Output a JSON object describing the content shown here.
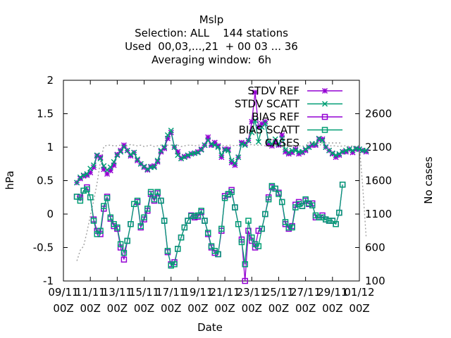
{
  "chart_data": {
    "type": "line",
    "title_lines": [
      "Mslp",
      "Selection: ALL    144 stations",
      "Used  00,03,...,21  + 00 03 ... 36",
      "Averaging window:  6h"
    ],
    "xlabel": "Date",
    "ylabel": "hPa",
    "y2label": "No cases",
    "ylim": [
      -1,
      2
    ],
    "y2lim": [
      100,
      3100
    ],
    "xlim": [
      0,
      22
    ],
    "y_ticks": [
      "2",
      "1.5",
      "1",
      "0.5",
      "0",
      "-0.5",
      "-1"
    ],
    "y2_ticks": [
      "2600",
      "2100",
      "1600",
      "1100",
      "600",
      "100"
    ],
    "x_ticks": [
      {
        "date": "09/11",
        "hour": "00Z"
      },
      {
        "date": "11/11",
        "hour": "00Z"
      },
      {
        "date": "13/11",
        "hour": "00Z"
      },
      {
        "date": "15/11",
        "hour": "00Z"
      },
      {
        "date": "17/11",
        "hour": "00Z"
      },
      {
        "date": "19/11",
        "hour": "00Z"
      },
      {
        "date": "21/11",
        "hour": "00Z"
      },
      {
        "date": "23/11",
        "hour": "00Z"
      },
      {
        "date": "25/11",
        "hour": "00Z"
      },
      {
        "date": "27/11",
        "hour": "00Z"
      },
      {
        "date": "29/11",
        "hour": "00Z"
      },
      {
        "date": "01/12",
        "hour": "00Z"
      }
    ],
    "legend": "top-right",
    "grid": false,
    "colors": {
      "ref": "#9400d3",
      "scatt": "#009e73",
      "cases": "#a0a0a0"
    },
    "x_step_days": 0.25,
    "x_start_day": 1,
    "series": [
      {
        "name": "STDV REF",
        "marker": "star",
        "color": "#9400d3",
        "values": [
          0.47,
          0.53,
          0.57,
          0.58,
          0.62,
          0.7,
          0.87,
          0.85,
          0.67,
          0.6,
          0.65,
          0.73,
          0.89,
          0.95,
          1.03,
          0.95,
          0.87,
          0.92,
          0.8,
          0.75,
          0.7,
          0.66,
          0.71,
          0.72,
          0.78,
          0.93,
          0.98,
          1.13,
          1.22,
          1.0,
          0.93,
          0.83,
          0.86,
          0.87,
          0.9,
          0.91,
          0.93,
          0.97,
          1.03,
          1.15,
          1.03,
          1.07,
          1.02,
          0.85,
          0.97,
          0.97,
          0.77,
          0.73,
          0.85,
          1.07,
          1.05,
          1.1,
          1.38,
          1.82,
          1.3,
          1.35,
          1.38,
          1.05,
          1.02,
          1.08,
          1.03,
          1.18,
          0.93,
          0.9,
          0.92,
          0.97,
          0.9,
          0.92,
          0.95,
          1.0,
          1.03,
          1.03,
          1.12,
          1.12,
          1.0,
          0.95,
          0.9,
          0.85,
          0.88,
          0.93,
          0.93,
          0.97,
          0.92,
          0.97,
          0.97,
          0.95,
          0.93
        ]
      },
      {
        "name": "STDV SCATT",
        "marker": "x",
        "color": "#009e73",
        "values": [
          0.47,
          0.55,
          0.58,
          0.6,
          0.68,
          0.73,
          0.88,
          0.83,
          0.72,
          0.66,
          0.7,
          0.78,
          0.88,
          0.93,
          1.0,
          0.95,
          0.89,
          0.92,
          0.82,
          0.75,
          0.71,
          0.67,
          0.7,
          0.7,
          0.8,
          0.95,
          1.0,
          1.18,
          1.25,
          1.0,
          0.88,
          0.83,
          0.85,
          0.88,
          0.9,
          0.91,
          0.92,
          0.96,
          1.03,
          1.1,
          1.05,
          1.03,
          1.0,
          0.88,
          0.96,
          0.95,
          0.8,
          0.76,
          0.85,
          1.05,
          1.03,
          1.1,
          1.22,
          1.4,
          1.08,
          1.3,
          1.35,
          1.08,
          1.05,
          1.12,
          1.05,
          1.13,
          0.96,
          0.92,
          0.95,
          0.95,
          0.93,
          0.93,
          0.97,
          1.0,
          1.05,
          1.05,
          1.13,
          1.1,
          1.0,
          0.95,
          0.91,
          0.88,
          0.9,
          0.93,
          0.95,
          0.97,
          0.95,
          0.98,
          0.97,
          0.95,
          0.95
        ]
      },
      {
        "name": "BIAS REF",
        "marker": "square",
        "color": "#9400d3",
        "values": [
          0.26,
          0.25,
          0.35,
          0.4,
          0.25,
          -0.08,
          -0.25,
          -0.3,
          0.08,
          0.26,
          -0.07,
          -0.18,
          -0.22,
          -0.5,
          -0.68,
          -0.4,
          -0.15,
          0.15,
          0.18,
          -0.2,
          -0.08,
          0.05,
          0.3,
          0.2,
          0.31,
          0.2,
          -0.1,
          -0.57,
          -0.75,
          -0.72,
          -0.52,
          -0.35,
          -0.2,
          -0.1,
          -0.02,
          -0.05,
          -0.04,
          0.03,
          -0.1,
          -0.3,
          -0.5,
          -0.58,
          -0.6,
          -0.25,
          0.27,
          0.29,
          0.36,
          0.1,
          -0.15,
          -0.38,
          -1.0,
          -0.25,
          -0.4,
          -0.5,
          -0.25,
          -0.22,
          0.0,
          0.25,
          0.4,
          0.38,
          0.32,
          0.18,
          -0.15,
          -0.22,
          -0.18,
          0.14,
          0.18,
          0.12,
          0.2,
          0.15,
          0.16,
          -0.05,
          -0.05,
          -0.02,
          -0.08,
          -0.1,
          -0.1,
          -0.15,
          0.02,
          0.44
        ]
      },
      {
        "name": "BIAS SCATT",
        "marker": "square",
        "color": "#009e73",
        "values": [
          0.26,
          0.2,
          0.35,
          0.37,
          0.25,
          -0.1,
          -0.3,
          -0.25,
          0.12,
          0.24,
          -0.05,
          -0.15,
          -0.2,
          -0.45,
          -0.58,
          -0.4,
          -0.15,
          0.15,
          0.2,
          -0.18,
          -0.05,
          0.08,
          0.33,
          0.22,
          0.33,
          0.2,
          -0.1,
          -0.55,
          -0.77,
          -0.75,
          -0.52,
          -0.35,
          -0.2,
          -0.1,
          -0.03,
          -0.03,
          -0.02,
          0.05,
          -0.1,
          -0.28,
          -0.48,
          -0.55,
          -0.6,
          -0.22,
          0.24,
          0.3,
          0.33,
          0.1,
          -0.15,
          -0.42,
          -0.75,
          -0.1,
          -0.35,
          -0.45,
          -0.48,
          -0.22,
          0.0,
          0.22,
          0.42,
          0.38,
          0.3,
          0.18,
          -0.12,
          -0.2,
          -0.2,
          0.1,
          0.15,
          0.12,
          0.22,
          0.16,
          0.13,
          -0.02,
          -0.05,
          -0.05,
          -0.08,
          -0.1,
          -0.1,
          -0.15,
          0.02,
          0.44
        ]
      },
      {
        "name": "CASES",
        "marker": "none",
        "color": "#a0a0a0",
        "dashed": true,
        "values": [
          400,
          560,
          620,
          830,
          1080,
          1300,
          1560,
          1880,
          2110,
          2130,
          2130,
          2120,
          2120,
          2130,
          2120,
          2120,
          2140,
          2130,
          2120,
          2130,
          2110,
          2120,
          2130,
          2110,
          2120,
          2130,
          2120,
          2130,
          2130,
          2130,
          2130,
          2110,
          2120,
          2130,
          2130,
          2120,
          2130,
          2130,
          2120,
          2130,
          2120,
          2140,
          2130,
          2130,
          2120,
          2130,
          2130,
          2120,
          2130,
          2120,
          2130,
          2130,
          2140,
          2130,
          2130,
          2130,
          2120,
          2120,
          2130,
          2120,
          2130,
          2130,
          2130,
          2140,
          2130,
          2120,
          2120,
          2120,
          2110,
          2130,
          2130,
          2120,
          2130,
          2140,
          2130,
          2120,
          2120,
          2120,
          2110,
          2120,
          2120,
          2110,
          2120,
          2110,
          2130,
          1500,
          770
        ]
      }
    ]
  }
}
